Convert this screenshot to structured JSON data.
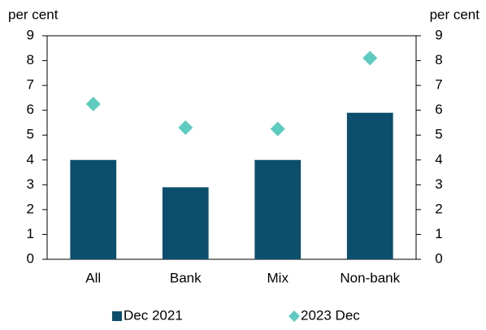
{
  "chart_data": {
    "type": "bar",
    "y_label": "per cent",
    "y2_label": "per cent",
    "categories": [
      "All",
      "Bank",
      "Mix",
      "Non-bank"
    ],
    "series": [
      {
        "name": "Dec 2021",
        "type": "bar",
        "color": "#0b4f6c",
        "values": [
          4.0,
          2.9,
          4.0,
          5.9
        ]
      },
      {
        "name": "2023 Dec",
        "type": "marker",
        "color": "#5ecbc0",
        "axis": "y2",
        "values": [
          6.25,
          5.3,
          5.25,
          8.1
        ]
      }
    ],
    "ylim": [
      0,
      9
    ],
    "yticks": [
      0,
      1,
      2,
      3,
      4,
      5,
      6,
      7,
      8,
      9
    ],
    "y2lim": [
      0,
      9
    ],
    "y2ticks": [
      0,
      1,
      2,
      3,
      4,
      5,
      6,
      7,
      8,
      9
    ],
    "legend": "bottom"
  }
}
